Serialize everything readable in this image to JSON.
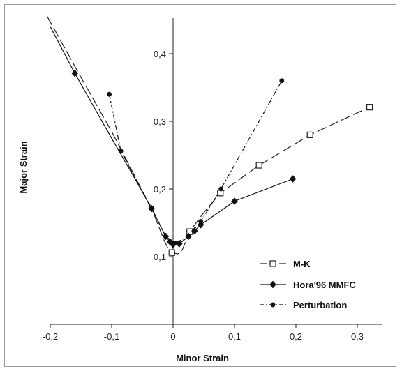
{
  "chart_data": {
    "type": "line",
    "title": "",
    "xlabel": "Minor Strain",
    "ylabel": "Major Strain",
    "xlim": [
      -0.2,
      0.35
    ],
    "ylim": [
      0.0,
      0.45
    ],
    "x_ticks": [
      "-0,2",
      "-0,1",
      "0",
      "0,1",
      "0,2",
      "0,3"
    ],
    "y_ticks": [
      "0,1",
      "0,2",
      "0,3",
      "0,4"
    ],
    "grid": false,
    "legend_position": "bottom-right",
    "series": [
      {
        "name": "M-K",
        "style": "long-dash",
        "marker": "open-square",
        "color": "#222222",
        "markers": [
          [
            -0.002,
            0.106
          ],
          [
            0.027,
            0.137
          ],
          [
            0.077,
            0.194
          ],
          [
            0.14,
            0.235
          ],
          [
            0.223,
            0.28
          ],
          [
            0.32,
            0.321
          ]
        ],
        "curve": [
          [
            -0.205,
            0.455
          ],
          [
            -0.15,
            0.365
          ],
          [
            -0.1,
            0.285
          ],
          [
            -0.06,
            0.215
          ],
          [
            -0.03,
            0.16
          ],
          [
            -0.015,
            0.125
          ],
          [
            -0.006,
            0.108
          ],
          [
            -0.002,
            0.106
          ],
          [
            0.008,
            0.104
          ],
          [
            0.015,
            0.11
          ],
          [
            0.027,
            0.137
          ],
          [
            0.05,
            0.165
          ],
          [
            0.077,
            0.194
          ],
          [
            0.14,
            0.235
          ],
          [
            0.223,
            0.28
          ],
          [
            0.32,
            0.321
          ]
        ]
      },
      {
        "name": "Hora'96 MMFC",
        "style": "solid",
        "marker": "filled-diamond",
        "color": "#111111",
        "markers": [
          [
            -0.16,
            0.371
          ],
          [
            -0.035,
            0.171
          ],
          [
            -0.012,
            0.13
          ],
          [
            -0.005,
            0.122
          ],
          [
            0.0,
            0.118
          ],
          [
            0.01,
            0.119
          ],
          [
            0.025,
            0.13
          ],
          [
            0.035,
            0.138
          ],
          [
            0.045,
            0.147
          ],
          [
            0.1,
            0.182
          ],
          [
            0.195,
            0.215
          ]
        ],
        "curve": [
          [
            -0.2,
            0.44
          ],
          [
            -0.16,
            0.371
          ],
          [
            -0.1,
            0.275
          ],
          [
            -0.06,
            0.212
          ],
          [
            -0.035,
            0.171
          ],
          [
            -0.012,
            0.13
          ],
          [
            -0.005,
            0.122
          ],
          [
            0.0,
            0.118
          ],
          [
            0.01,
            0.119
          ],
          [
            0.025,
            0.13
          ],
          [
            0.035,
            0.138
          ],
          [
            0.045,
            0.147
          ],
          [
            0.1,
            0.182
          ],
          [
            0.195,
            0.215
          ]
        ]
      },
      {
        "name": "Perturbation",
        "style": "dash-dot",
        "marker": "filled-circle",
        "color": "#111111",
        "markers": [
          [
            -0.104,
            0.34
          ],
          [
            -0.085,
            0.256
          ],
          [
            -0.035,
            0.172
          ],
          [
            -0.012,
            0.13
          ],
          [
            0.003,
            0.12
          ],
          [
            0.025,
            0.13
          ],
          [
            0.045,
            0.152
          ],
          [
            0.078,
            0.2
          ],
          [
            0.177,
            0.36
          ]
        ],
        "curve": [
          [
            -0.104,
            0.34
          ],
          [
            -0.085,
            0.256
          ],
          [
            -0.035,
            0.172
          ],
          [
            -0.012,
            0.13
          ],
          [
            0.003,
            0.12
          ],
          [
            0.025,
            0.13
          ],
          [
            0.045,
            0.152
          ],
          [
            0.078,
            0.2
          ],
          [
            0.177,
            0.36
          ]
        ]
      }
    ]
  }
}
